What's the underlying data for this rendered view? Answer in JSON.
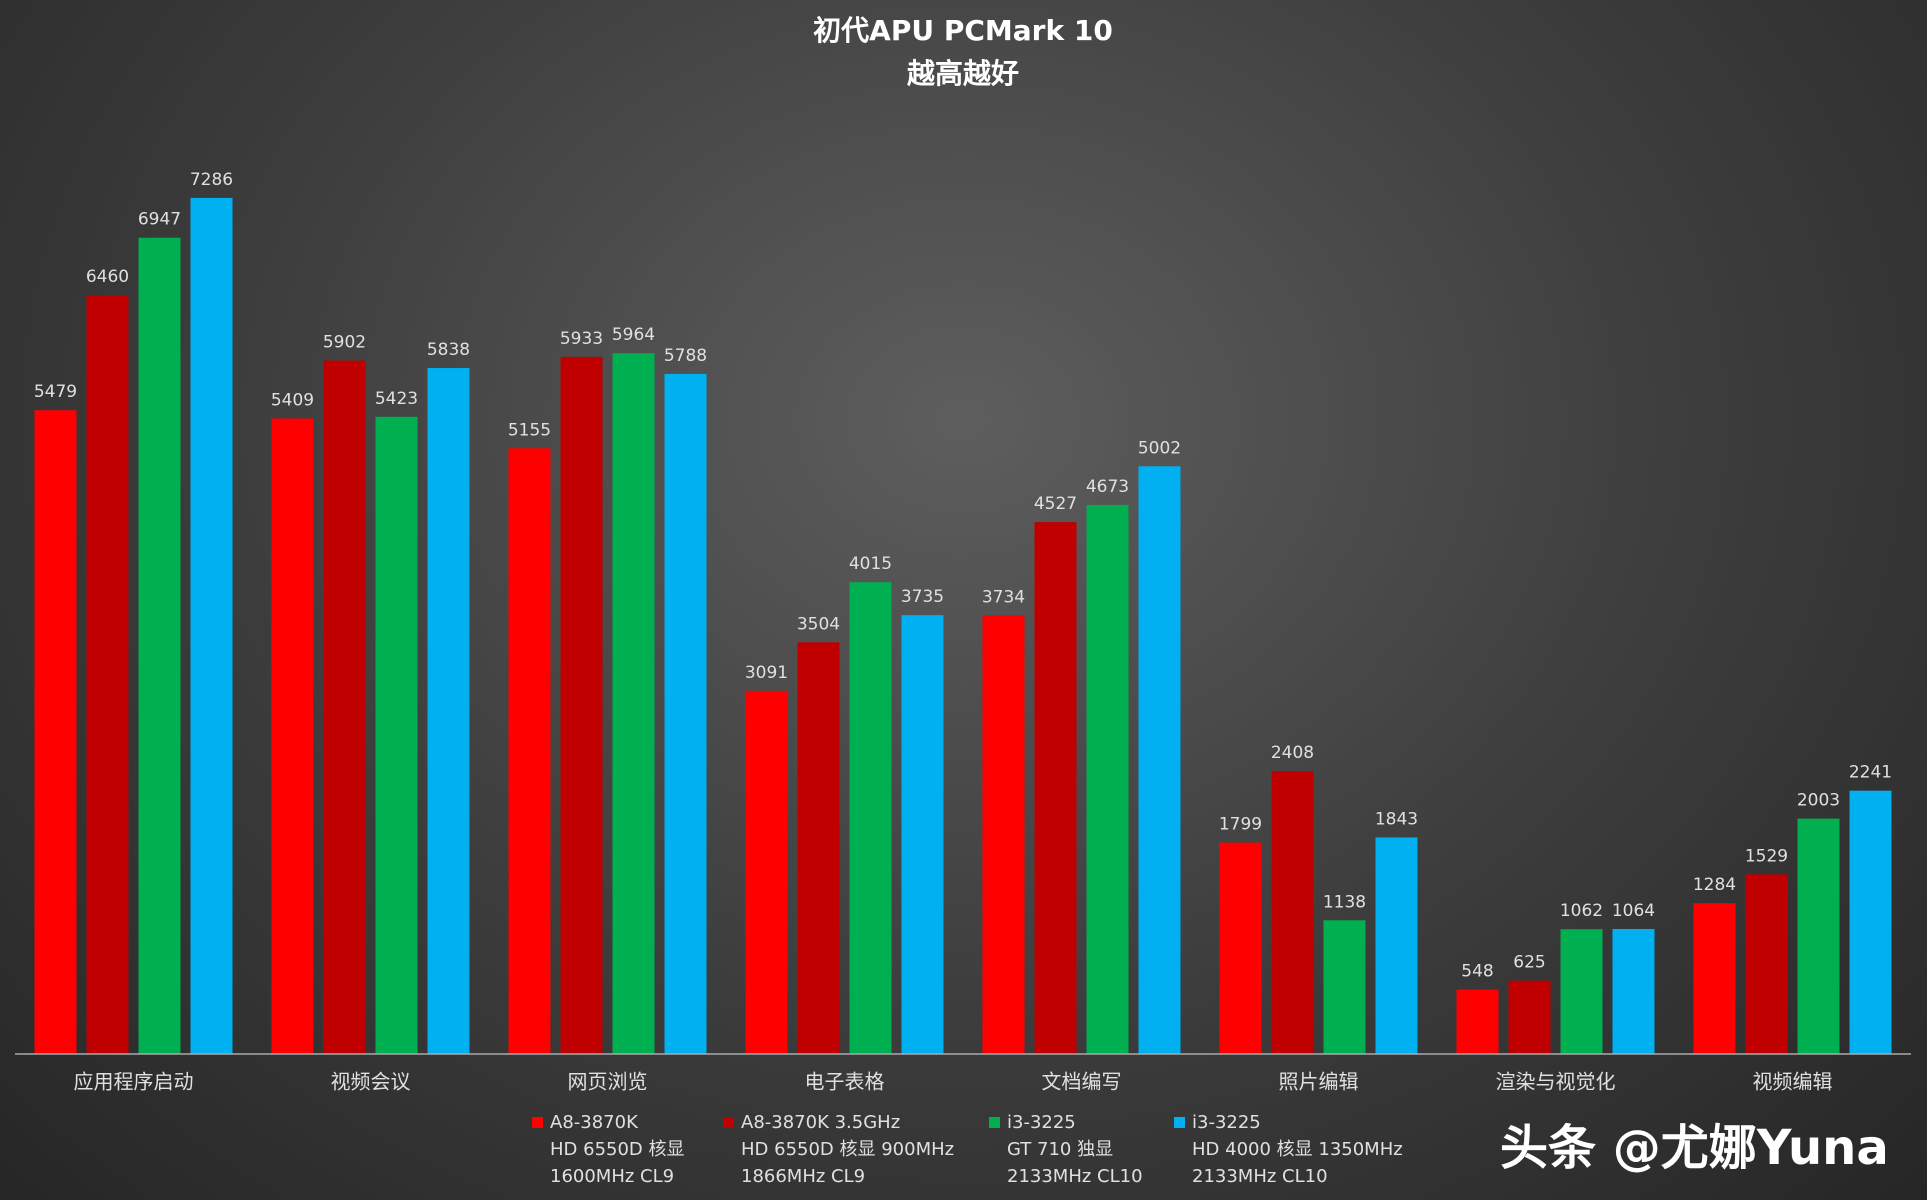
{
  "chart_data": {
    "type": "bar",
    "title": "初代APU PCMark 10",
    "subtitle": "越高越好",
    "categories": [
      "应用程序启动",
      "视频会议",
      "网页浏览",
      "电子表格",
      "文档编写",
      "照片编辑",
      "渲染与视觉化",
      "视频编辑"
    ],
    "series": [
      {
        "name": "A8-3870K\nHD 6550D 核显\n1600MHz CL9",
        "color": "#ff0000",
        "values": [
          5479,
          5409,
          5155,
          3091,
          3734,
          1799,
          548,
          1284
        ]
      },
      {
        "name": "A8-3870K 3.5GHz\nHD 6550D 核显 900MHz\n1866MHz CL9",
        "color": "#c00000",
        "values": [
          6460,
          5902,
          5933,
          3504,
          4527,
          2408,
          625,
          1529
        ]
      },
      {
        "name": "i3-3225\nGT 710 独显\n2133MHz CL10",
        "color": "#00b050",
        "values": [
          6947,
          5423,
          5964,
          4015,
          4673,
          1138,
          1062,
          2003
        ]
      },
      {
        "name": "i3-3225\nHD 4000 核显 1350MHz\n2133MHz CL10",
        "color": "#00b0f0",
        "values": [
          7286,
          5838,
          5788,
          3735,
          5002,
          1843,
          1064,
          2241
        ]
      }
    ],
    "ylim": [
      0,
      8000
    ],
    "watermark": "头条 @尤娜Yuna"
  }
}
